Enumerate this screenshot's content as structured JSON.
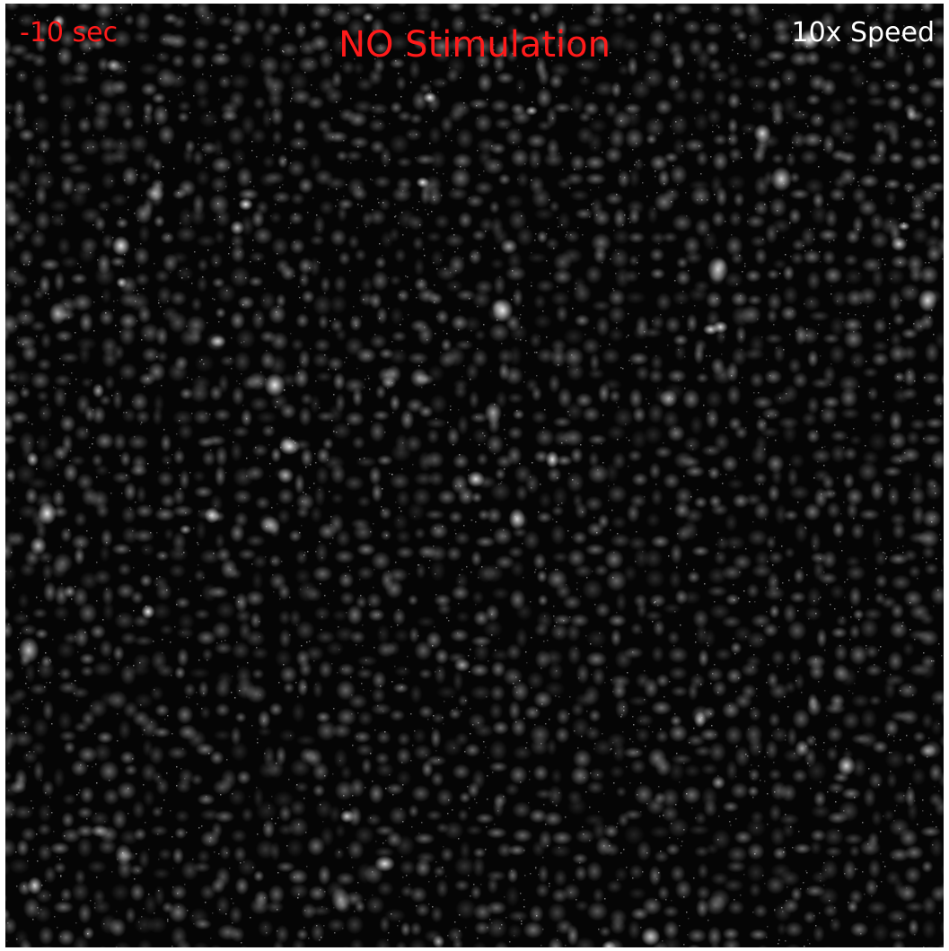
{
  "overlay": {
    "timestamp": "-10 sec",
    "condition": "NO Stimulation",
    "speed": "10x Speed"
  },
  "colors": {
    "timestamp": "#ff1a1a",
    "condition": "#ff1a1a",
    "speed": "#ffffff",
    "background": "#050505",
    "cell_tint": "#ffffff"
  }
}
